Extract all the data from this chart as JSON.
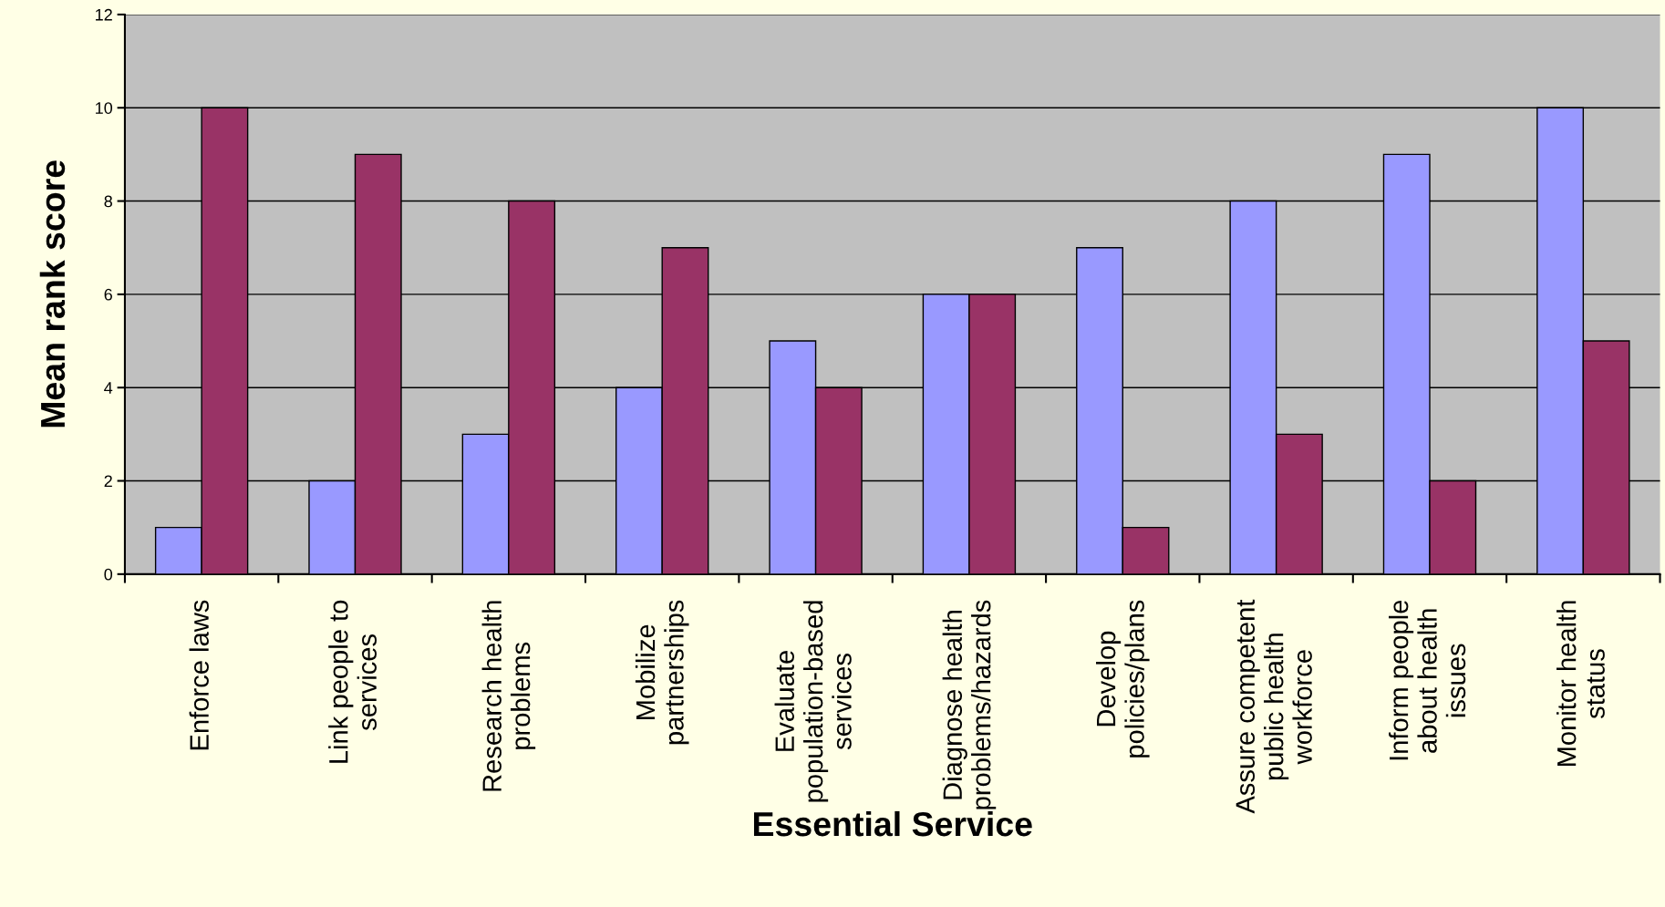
{
  "chart_data": {
    "type": "bar",
    "xlabel": "Essential Service",
    "ylabel": "Mean rank score",
    "categories": [
      "Enforce laws",
      "Link people to\nservices",
      "Research health\nproblems",
      "Mobilize\npartnerships",
      "Evaluate\npopulation-based\nservices",
      "Diagnose health\nproblems/hazards",
      "Develop\npolicies/plans",
      "Assure competent\npublic health\nworkforce",
      "Inform people\nabout health\nissues",
      "Monitor health\nstatus"
    ],
    "series": [
      {
        "color": "#9999ff",
        "values": [
          1,
          2,
          3,
          4,
          5,
          6,
          7,
          8,
          9,
          10
        ]
      },
      {
        "color": "#993366",
        "values": [
          10,
          9,
          8,
          7,
          4,
          6,
          1,
          3,
          2,
          5
        ]
      }
    ],
    "ylim": [
      0,
      12
    ],
    "yticks": [
      0,
      2,
      4,
      6,
      8,
      10,
      12
    ],
    "grid": "y",
    "legend": false
  }
}
